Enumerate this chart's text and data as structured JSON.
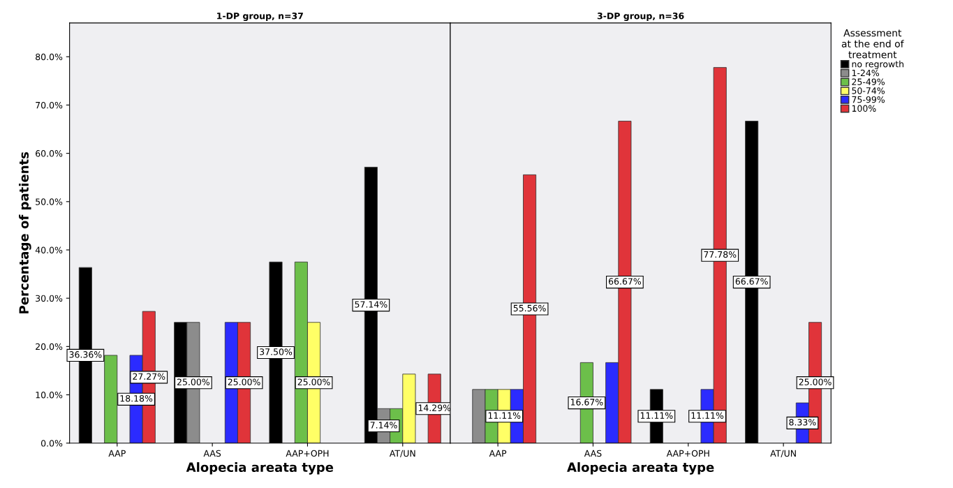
{
  "chart_data": [
    {
      "type": "bar",
      "title": "1-DP group, n=37",
      "xlabel": "Alopecia areata type",
      "ylabel": "Percentage of patients",
      "categories": [
        "AAP",
        "AAS",
        "AAP+OPH",
        "AT/UN"
      ],
      "ylim": [
        0,
        87
      ],
      "yticks": [
        {
          "value": 0,
          "label": "0.0%"
        },
        {
          "value": 10,
          "label": "10.0%"
        },
        {
          "value": 20,
          "label": "20.0%"
        },
        {
          "value": 30,
          "label": "30.0%"
        },
        {
          "value": 40,
          "label": "40.0%"
        },
        {
          "value": 50,
          "label": "50.0%"
        },
        {
          "value": 60,
          "label": "60.0%"
        },
        {
          "value": 70,
          "label": "70.0%"
        },
        {
          "value": 80,
          "label": "80.0%"
        }
      ],
      "series": [
        {
          "color": "#000000",
          "values": [
            36.36,
            25.0,
            37.5,
            57.14
          ],
          "value_labels": [
            "36.36%",
            null,
            "37.50%",
            "57.14%"
          ]
        },
        {
          "color": "#8c8c8c",
          "values": [
            null,
            25.0,
            null,
            7.14
          ],
          "value_labels": [
            null,
            "25.00%",
            null,
            "7.14%"
          ]
        },
        {
          "color": "#6cbf4a",
          "values": [
            18.18,
            null,
            37.5,
            7.14
          ],
          "value_labels": [
            null,
            null,
            null,
            null
          ]
        },
        {
          "color": "#ffff66",
          "values": [
            null,
            null,
            25.0,
            14.29
          ],
          "value_labels": [
            null,
            null,
            "25.00%",
            null
          ]
        },
        {
          "color": "#2b2bff",
          "values": [
            18.18,
            25.0,
            null,
            null
          ],
          "value_labels": [
            "18.18%",
            null,
            null,
            null
          ]
        },
        {
          "color": "#e0343a",
          "values": [
            27.27,
            25.0,
            null,
            14.29
          ],
          "value_labels": [
            "27.27%",
            "25.00%",
            null,
            "14.29%"
          ]
        }
      ]
    },
    {
      "type": "bar",
      "title": "3-DP group, n=36",
      "xlabel": "Alopecia areata type",
      "categories": [
        "AAP",
        "AAS",
        "AAP+OPH",
        "AT/UN"
      ],
      "ylim": [
        0,
        87
      ],
      "tick_labels": "x",
      "legend": "right",
      "legend_title": "Assessment\nat the end of\ntreatment",
      "series": [
        {
          "name": "no regrowth",
          "color": "#000000",
          "values": [
            null,
            null,
            11.11,
            66.67
          ],
          "value_labels": [
            null,
            null,
            "11.11%",
            "66.67%"
          ]
        },
        {
          "name": "1-24%",
          "color": "#8c8c8c",
          "values": [
            11.11,
            null,
            null,
            null
          ],
          "value_labels": [
            null,
            null,
            null,
            null
          ]
        },
        {
          "name": "25-49%",
          "color": "#6cbf4a",
          "values": [
            11.11,
            16.67,
            null,
            null
          ],
          "value_labels": [
            null,
            "16.67%",
            null,
            null
          ]
        },
        {
          "name": "50-74%",
          "color": "#ffff66",
          "values": [
            11.11,
            null,
            null,
            null
          ],
          "value_labels": [
            "11.11%",
            null,
            null,
            null
          ]
        },
        {
          "name": "75-99%",
          "color": "#2b2bff",
          "values": [
            11.11,
            16.67,
            11.11,
            8.33
          ],
          "value_labels": [
            null,
            null,
            "11.11%",
            "8.33%"
          ]
        },
        {
          "name": "100%",
          "color": "#e0343a",
          "values": [
            55.56,
            66.67,
            77.78,
            25.0
          ],
          "value_labels": [
            "55.56%",
            "66.67%",
            "77.78%",
            "25.00%"
          ]
        }
      ]
    }
  ]
}
